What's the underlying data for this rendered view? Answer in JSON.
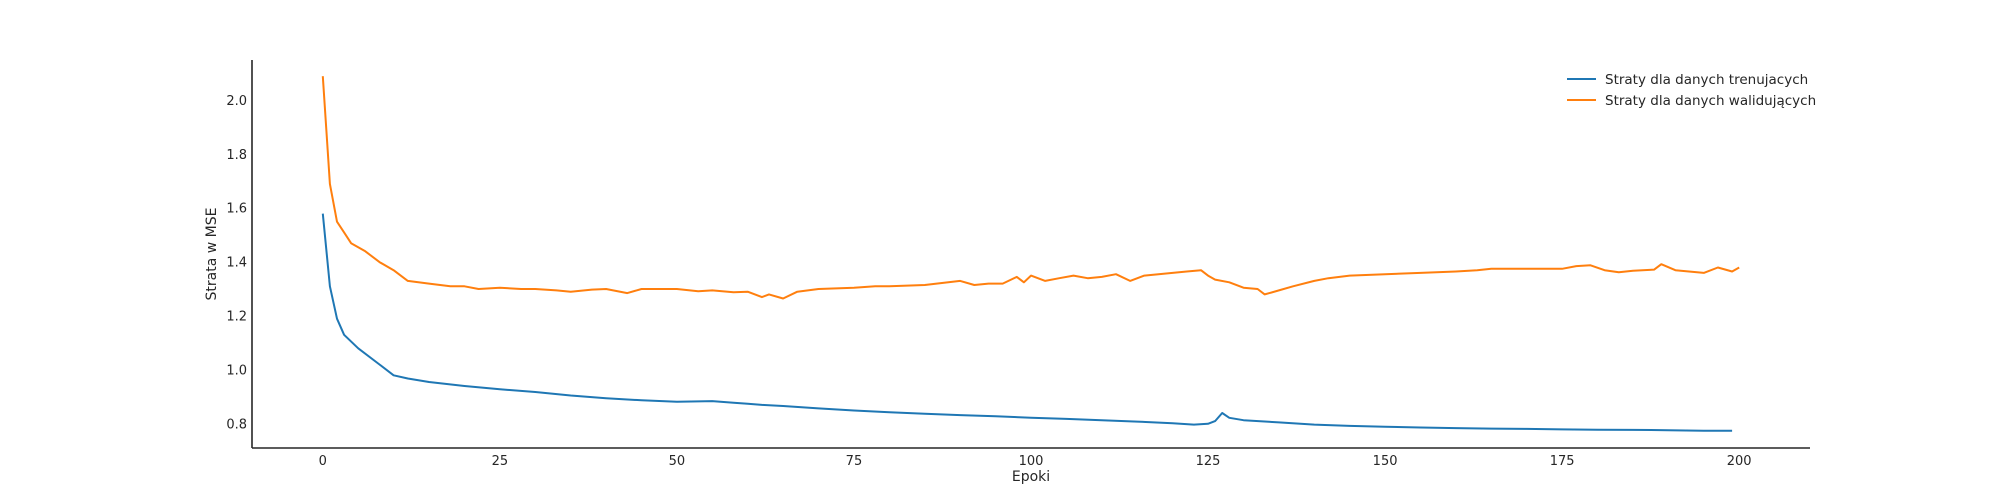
{
  "chart_data": {
    "type": "line",
    "title": "",
    "xlabel": "Epoki",
    "ylabel": "Strata w MSE",
    "xlim": [
      -10,
      210
    ],
    "ylim": [
      0.71,
      2.15
    ],
    "xticks": [
      0,
      25,
      50,
      75,
      100,
      125,
      150,
      175,
      200
    ],
    "yticks": [
      0.8,
      1.0,
      1.2,
      1.4,
      1.6,
      1.8,
      2.0
    ],
    "grid": false,
    "legend_position": "top-right",
    "series": [
      {
        "name": "Straty dla danych trenujacych",
        "color": "#1f77b4",
        "points": [
          [
            0,
            1.58
          ],
          [
            1,
            1.31
          ],
          [
            2,
            1.19
          ],
          [
            3,
            1.13
          ],
          [
            5,
            1.08
          ],
          [
            8,
            1.02
          ],
          [
            10,
            0.98
          ],
          [
            12,
            0.968
          ],
          [
            15,
            0.955
          ],
          [
            20,
            0.94
          ],
          [
            25,
            0.928
          ],
          [
            30,
            0.918
          ],
          [
            35,
            0.905
          ],
          [
            40,
            0.895
          ],
          [
            45,
            0.887
          ],
          [
            50,
            0.882
          ],
          [
            55,
            0.884
          ],
          [
            58,
            0.878
          ],
          [
            60,
            0.874
          ],
          [
            62,
            0.87
          ],
          [
            65,
            0.866
          ],
          [
            70,
            0.857
          ],
          [
            75,
            0.849
          ],
          [
            80,
            0.843
          ],
          [
            85,
            0.837
          ],
          [
            90,
            0.832
          ],
          [
            95,
            0.828
          ],
          [
            100,
            0.822
          ],
          [
            105,
            0.818
          ],
          [
            110,
            0.813
          ],
          [
            115,
            0.808
          ],
          [
            120,
            0.802
          ],
          [
            123,
            0.797
          ],
          [
            125,
            0.8
          ],
          [
            126,
            0.81
          ],
          [
            127,
            0.84
          ],
          [
            128,
            0.822
          ],
          [
            130,
            0.813
          ],
          [
            135,
            0.805
          ],
          [
            140,
            0.797
          ],
          [
            145,
            0.792
          ],
          [
            150,
            0.789
          ],
          [
            155,
            0.786
          ],
          [
            160,
            0.784
          ],
          [
            165,
            0.782
          ],
          [
            170,
            0.781
          ],
          [
            175,
            0.779
          ],
          [
            180,
            0.778
          ],
          [
            185,
            0.777
          ],
          [
            190,
            0.776
          ],
          [
            195,
            0.774
          ],
          [
            199,
            0.774
          ]
        ]
      },
      {
        "name": "Straty dla danych walidujących",
        "color": "#ff7f0e",
        "points": [
          [
            0,
            2.09
          ],
          [
            1,
            1.69
          ],
          [
            2,
            1.55
          ],
          [
            3,
            1.51
          ],
          [
            4,
            1.47
          ],
          [
            6,
            1.44
          ],
          [
            8,
            1.4
          ],
          [
            10,
            1.37
          ],
          [
            12,
            1.33
          ],
          [
            15,
            1.32
          ],
          [
            18,
            1.31
          ],
          [
            20,
            1.31
          ],
          [
            22,
            1.3
          ],
          [
            25,
            1.305
          ],
          [
            28,
            1.3
          ],
          [
            30,
            1.3
          ],
          [
            33,
            1.295
          ],
          [
            35,
            1.29
          ],
          [
            38,
            1.298
          ],
          [
            40,
            1.3
          ],
          [
            43,
            1.285
          ],
          [
            45,
            1.3
          ],
          [
            48,
            1.3
          ],
          [
            50,
            1.3
          ],
          [
            53,
            1.292
          ],
          [
            55,
            1.295
          ],
          [
            58,
            1.288
          ],
          [
            60,
            1.29
          ],
          [
            62,
            1.27
          ],
          [
            63,
            1.28
          ],
          [
            65,
            1.265
          ],
          [
            67,
            1.29
          ],
          [
            70,
            1.3
          ],
          [
            75,
            1.305
          ],
          [
            78,
            1.31
          ],
          [
            80,
            1.31
          ],
          [
            85,
            1.315
          ],
          [
            90,
            1.33
          ],
          [
            92,
            1.315
          ],
          [
            94,
            1.32
          ],
          [
            96,
            1.32
          ],
          [
            98,
            1.345
          ],
          [
            99,
            1.325
          ],
          [
            100,
            1.35
          ],
          [
            102,
            1.33
          ],
          [
            104,
            1.34
          ],
          [
            106,
            1.35
          ],
          [
            108,
            1.34
          ],
          [
            110,
            1.345
          ],
          [
            112,
            1.355
          ],
          [
            114,
            1.33
          ],
          [
            116,
            1.35
          ],
          [
            118,
            1.355
          ],
          [
            120,
            1.36
          ],
          [
            122,
            1.365
          ],
          [
            124,
            1.37
          ],
          [
            125,
            1.35
          ],
          [
            126,
            1.335
          ],
          [
            128,
            1.325
          ],
          [
            130,
            1.305
          ],
          [
            132,
            1.3
          ],
          [
            133,
            1.28
          ],
          [
            135,
            1.295
          ],
          [
            137,
            1.31
          ],
          [
            140,
            1.33
          ],
          [
            142,
            1.34
          ],
          [
            145,
            1.35
          ],
          [
            150,
            1.355
          ],
          [
            155,
            1.36
          ],
          [
            160,
            1.365
          ],
          [
            163,
            1.37
          ],
          [
            165,
            1.375
          ],
          [
            170,
            1.375
          ],
          [
            175,
            1.375
          ],
          [
            177,
            1.385
          ],
          [
            179,
            1.388
          ],
          [
            181,
            1.37
          ],
          [
            183,
            1.362
          ],
          [
            185,
            1.368
          ],
          [
            188,
            1.372
          ],
          [
            189,
            1.392
          ],
          [
            191,
            1.37
          ],
          [
            195,
            1.36
          ],
          [
            197,
            1.38
          ],
          [
            199,
            1.365
          ],
          [
            200,
            1.38
          ]
        ]
      }
    ]
  }
}
